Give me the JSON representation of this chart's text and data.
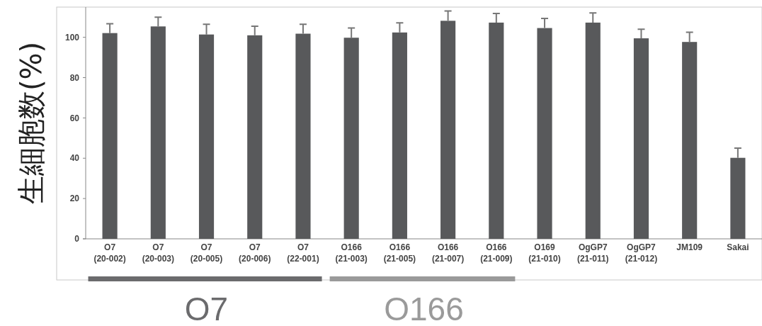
{
  "chart_data": {
    "type": "bar",
    "ylabel": "生細胞数(%)",
    "categories": [
      "O7\n(20-002)",
      "O7\n(20-003)",
      "O7\n(20-005)",
      "O7\n(20-006)",
      "O7\n(22-001)",
      "O166\n(21-003)",
      "O166\n(21-005)",
      "O166\n(21-007)",
      "O166\n(21-009)",
      "O169\n(21-010)",
      "OgGP7\n(21-011)",
      "OgGP7\n(21-012)",
      "JM109",
      "Sakai"
    ],
    "values": [
      102.1,
      105.4,
      101.4,
      101.0,
      101.8,
      99.8,
      102.4,
      108.2,
      107.3,
      104.6,
      107.3,
      99.5,
      97.7,
      40.2
    ],
    "errors": [
      4.6,
      4.6,
      5.1,
      4.5,
      4.7,
      4.8,
      4.8,
      4.9,
      4.5,
      4.8,
      4.8,
      4.5,
      4.8,
      4.8
    ],
    "color": "#58595b",
    "ylim": [
      0,
      115
    ],
    "yticks": [
      0,
      20,
      40,
      60,
      80,
      100
    ],
    "annotations": [
      "O7",
      "O166"
    ]
  }
}
